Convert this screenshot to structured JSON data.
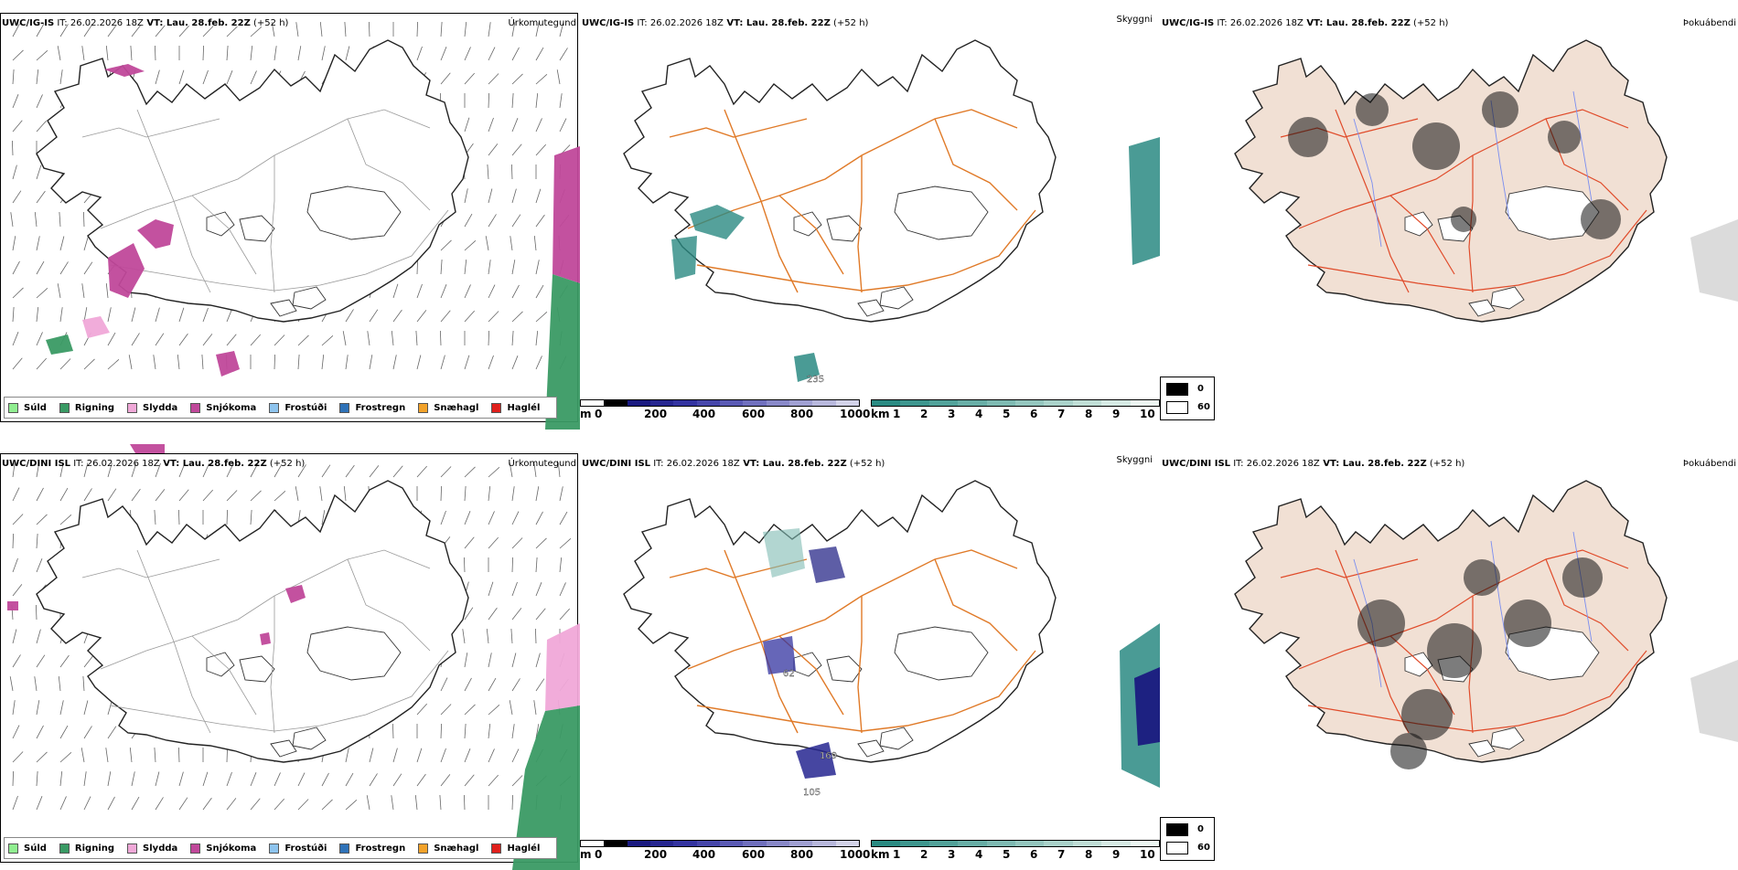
{
  "rows": [
    {
      "model": "UWC/IG-IS",
      "it_label": "IT:",
      "it_value": "26.02.2026 18Z",
      "vt_label": "VT:",
      "vt_value": "Lau. 28.feb. 22Z",
      "lead": "(+52 h)",
      "precip_title": "Úrkomutegund",
      "cloud_title": "Skyggni",
      "fog_title": "Þokuábendi",
      "point_labels": [
        "235"
      ]
    },
    {
      "model": "UWC/DINI ISL",
      "it_label": "IT:",
      "it_value": "26.02.2026 18Z",
      "vt_label": "VT:",
      "vt_value": "Lau. 28.feb. 22Z",
      "lead": "(+52 h)",
      "precip_title": "Úrkomutegund",
      "cloud_title": "Skyggni",
      "fog_title": "Þokuábendi",
      "point_labels": [
        "169",
        "105",
        "62"
      ]
    }
  ],
  "precip_legend": [
    {
      "label": "Súld",
      "color": "#90ee90"
    },
    {
      "label": "Rigning",
      "color": "#3a9a64"
    },
    {
      "label": "Slydda",
      "color": "#f0a8d8"
    },
    {
      "label": "Snjókoma",
      "color": "#c0489a"
    },
    {
      "label": "Frostúði",
      "color": "#8ec4ee"
    },
    {
      "label": "Frostregn",
      "color": "#2f72b8"
    },
    {
      "label": "Snæhagl",
      "color": "#f2a22a"
    },
    {
      "label": "Haglél",
      "color": "#e0201c"
    }
  ],
  "cloud_base_bar": {
    "unit": "m",
    "ticks": [
      "0",
      "200",
      "400",
      "600",
      "800",
      "1000"
    ],
    "colors": [
      "#ffffff",
      "#000000",
      "#1a1a80",
      "#262690",
      "#3333a0",
      "#4646aa",
      "#5a5ab4",
      "#7070be",
      "#8888c8",
      "#a0a0d2",
      "#b8b8dc",
      "#d2d2e8"
    ]
  },
  "visibility_bar": {
    "unit": "km",
    "ticks": [
      "1",
      "2",
      "3",
      "4",
      "5",
      "6",
      "7",
      "8",
      "9",
      "10"
    ],
    "colors": [
      "#2a8a82",
      "#3e968e",
      "#52a29a",
      "#68aea6",
      "#7ebab2",
      "#94c6be",
      "#aad2ca",
      "#c0ded6",
      "#d6eae4",
      "#ecf6f2"
    ]
  },
  "fog_legend": [
    {
      "label": "0",
      "color": "#000000"
    },
    {
      "label": "60",
      "color": "#ffffff"
    }
  ]
}
